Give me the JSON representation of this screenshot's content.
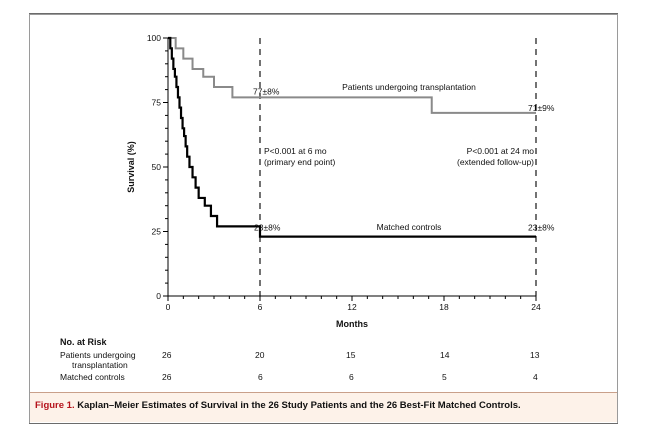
{
  "chart_data": {
    "type": "line",
    "title": "",
    "xlabel": "Months",
    "ylabel": "Survival (%)",
    "xlim": [
      0,
      24
    ],
    "ylim": [
      0,
      100
    ],
    "xticks": [
      0,
      6,
      12,
      18,
      24
    ],
    "yticks": [
      0,
      25,
      50,
      75,
      100
    ],
    "grid": false,
    "series": [
      {
        "name": "Patients undergoing transplantation",
        "step": true,
        "stroke": "#8a8a8a",
        "x": [
          0,
          0.5,
          1.0,
          1.6,
          2.3,
          3.0,
          4.2,
          6.0,
          17.2,
          24.0
        ],
        "y": [
          100,
          96,
          92,
          88,
          85,
          81,
          77,
          77,
          71,
          71
        ]
      },
      {
        "name": "Matched controls",
        "step": true,
        "stroke": "#000000",
        "x": [
          0,
          0.15,
          0.25,
          0.35,
          0.45,
          0.55,
          0.65,
          0.75,
          0.85,
          0.95,
          1.05,
          1.15,
          1.25,
          1.4,
          1.6,
          1.8,
          2.0,
          2.4,
          2.8,
          3.2,
          6.0,
          12.0,
          24.0
        ],
        "y": [
          100,
          96,
          92,
          88,
          85,
          81,
          77,
          73,
          69,
          65,
          62,
          58,
          54,
          50,
          46,
          42,
          38,
          35,
          31,
          27,
          23,
          23,
          23
        ]
      }
    ],
    "annotations": [
      {
        "x": 6,
        "y": 77,
        "text": "77±8%"
      },
      {
        "x": 24,
        "y": 71,
        "text": "71±9%"
      },
      {
        "x": 6,
        "y": 23,
        "text": "23±8%"
      },
      {
        "x": 24,
        "y": 23,
        "text": "23±8%"
      },
      {
        "x": 6,
        "text": "P<0.001 at 6 mo",
        "text2": "(primary end point)"
      },
      {
        "x": 24,
        "text": "P<0.001 at 24 mo",
        "text2": "(extended follow-up)"
      }
    ],
    "series_labels": [
      "Patients undergoing transplantation",
      "Matched controls"
    ],
    "reference_lines_x": [
      6,
      24
    ]
  },
  "risk_table": {
    "title": "No. at Risk",
    "rows": [
      {
        "label_line1": "Patients undergoing",
        "label_line2": "transplantation",
        "values": [
          "26",
          "20",
          "15",
          "14",
          "13"
        ]
      },
      {
        "label_line1": "Matched controls",
        "label_line2": "",
        "values": [
          "26",
          "6",
          "6",
          "5",
          "4"
        ]
      }
    ]
  },
  "caption": {
    "label": "Figure 1.",
    "text": "Kaplan–Meier Estimates of Survival in the 26 Study Patients and the 26 Best-Fit Matched Controls."
  }
}
